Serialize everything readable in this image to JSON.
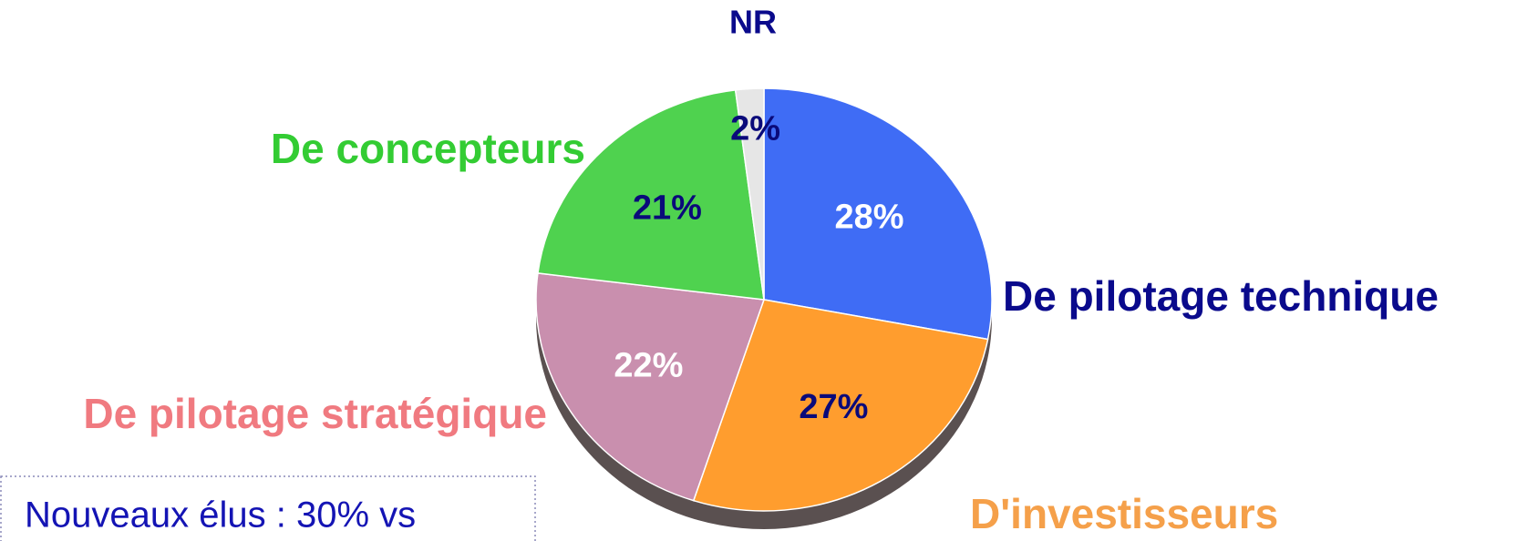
{
  "chart_data": {
    "type": "pie",
    "categories": [
      "De pilotage technique",
      "D'investisseurs",
      "De pilotage stratégique",
      "De concepteurs",
      "NR"
    ],
    "values": [
      28,
      27,
      22,
      21,
      2
    ],
    "value_labels": [
      "28%",
      "27%",
      "22%",
      "21%",
      "2%"
    ],
    "colors": [
      "#3f6cf5",
      "#ff9d2e",
      "#c98fae",
      "#4fd24f",
      "#e6e6e6"
    ],
    "label_colors": [
      "#0a0a8c",
      "#f5a04a",
      "#f07a80",
      "#33cc33",
      "#0a0a8c"
    ],
    "value_label_colors": [
      "#ffffff",
      "#0a0a7a",
      "#ffffff",
      "#0a0a7a",
      "#0a0a7a"
    ],
    "annotation": "Nouveaux élus : 30% vs"
  }
}
